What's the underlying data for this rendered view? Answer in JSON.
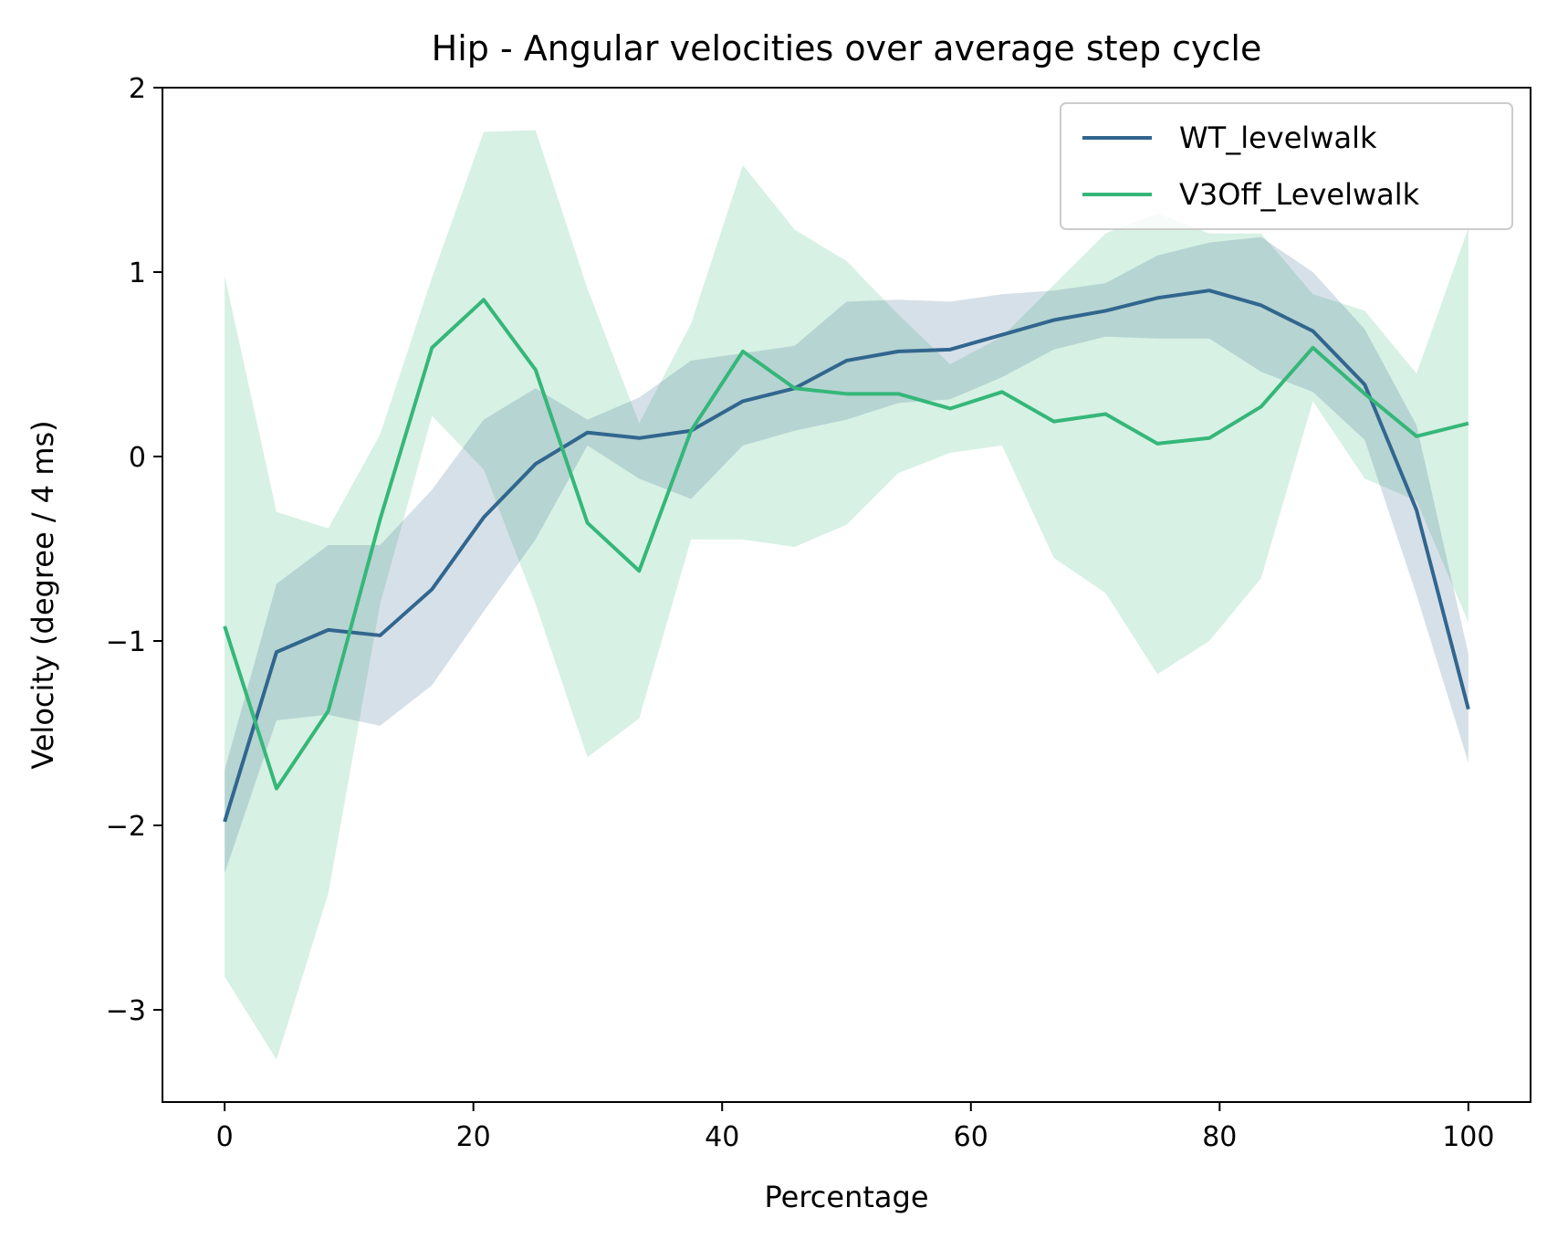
{
  "chart_data": {
    "type": "line",
    "title": "Hip - Angular velocities over average step cycle",
    "xlabel": "Percentage",
    "ylabel": "Velocity (degree / 4 ms)",
    "xlim": [
      -5,
      105
    ],
    "ylim": [
      -3.5,
      2.0
    ],
    "xticks": [
      0,
      20,
      40,
      60,
      80,
      100
    ],
    "yticks": [
      -3,
      -2,
      -1,
      0,
      1,
      2
    ],
    "xtick_labels": [
      "0",
      "20",
      "40",
      "60",
      "80",
      "100"
    ],
    "ytick_labels": [
      "−3",
      "−2",
      "−1",
      "0",
      "1",
      "2"
    ],
    "grid": false,
    "legend_position": "top-right",
    "x": [
      0,
      4.17,
      8.33,
      12.5,
      16.67,
      20.83,
      25,
      29.17,
      33.33,
      37.5,
      41.67,
      45.83,
      50,
      54.17,
      58.33,
      62.5,
      66.67,
      70.83,
      75,
      79.17,
      83.33,
      87.5,
      91.67,
      95.83,
      100
    ],
    "series": [
      {
        "name": "WT_levelwalk",
        "color": "#31668e",
        "values": [
          -1.98,
          -1.06,
          -0.94,
          -0.97,
          -0.72,
          -0.33,
          -0.04,
          0.13,
          0.1,
          0.14,
          0.3,
          0.37,
          0.52,
          0.57,
          0.58,
          0.66,
          0.74,
          0.79,
          0.86,
          0.9,
          0.82,
          0.68,
          0.39,
          -0.29,
          -1.37
        ],
        "lower": [
          -2.26,
          -1.43,
          -1.4,
          -1.46,
          -1.24,
          -0.84,
          -0.45,
          0.06,
          -0.12,
          -0.23,
          0.06,
          0.14,
          0.2,
          0.29,
          0.31,
          0.43,
          0.58,
          0.65,
          0.64,
          0.64,
          0.46,
          0.35,
          0.09,
          -0.75,
          -1.66
        ],
        "upper": [
          -1.7,
          -0.69,
          -0.48,
          -0.48,
          -0.18,
          0.2,
          0.37,
          0.2,
          0.32,
          0.52,
          0.56,
          0.6,
          0.84,
          0.85,
          0.84,
          0.88,
          0.9,
          0.94,
          1.09,
          1.16,
          1.19,
          1.0,
          0.69,
          0.17,
          -1.07
        ]
      },
      {
        "name": "V3Off_Levelwalk",
        "color": "#35b779",
        "values": [
          -0.92,
          -1.8,
          -1.38,
          -0.34,
          0.59,
          0.85,
          0.47,
          -0.36,
          -0.62,
          0.14,
          0.57,
          0.37,
          0.34,
          0.34,
          0.26,
          0.35,
          0.19,
          0.23,
          0.07,
          0.1,
          0.27,
          0.59,
          0.34,
          0.11,
          0.18
        ],
        "lower": [
          -2.82,
          -3.27,
          -2.37,
          -0.8,
          0.22,
          -0.07,
          -0.8,
          -1.63,
          -1.42,
          -0.45,
          -0.45,
          -0.49,
          -0.37,
          -0.09,
          0.02,
          0.06,
          -0.55,
          -0.74,
          -1.18,
          -1.0,
          -0.66,
          0.3,
          -0.12,
          -0.24,
          -0.9
        ],
        "upper": [
          0.98,
          -0.3,
          -0.39,
          0.12,
          0.97,
          1.76,
          1.77,
          0.91,
          0.18,
          0.72,
          1.58,
          1.23,
          1.06,
          0.77,
          0.5,
          0.65,
          0.93,
          1.21,
          1.32,
          1.21,
          1.21,
          0.88,
          0.79,
          0.45,
          1.24
        ]
      }
    ]
  }
}
